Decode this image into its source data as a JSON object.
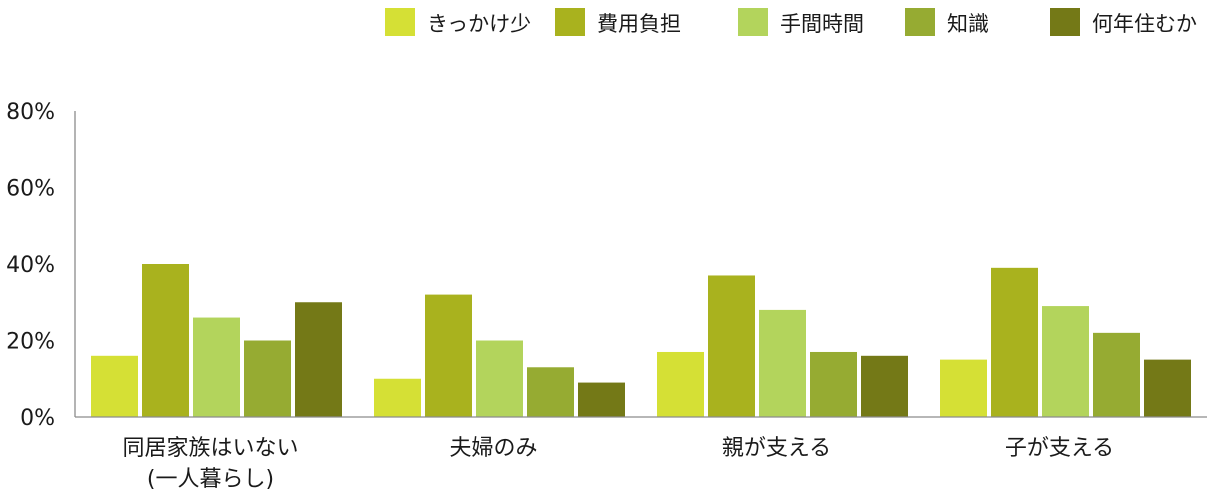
{
  "chart_data": {
    "type": "bar",
    "categories": [
      [
        "同居家族はいない",
        "(一人暮らし)"
      ],
      [
        "夫婦のみ"
      ],
      [
        "親が支える"
      ],
      [
        "子が支える"
      ]
    ],
    "series": [
      {
        "name": "きっかけ少",
        "color": "#d5e035",
        "values": [
          16,
          10,
          17,
          15
        ]
      },
      {
        "name": "費用負担",
        "color": "#a9b21e",
        "values": [
          40,
          32,
          37,
          39
        ]
      },
      {
        "name": "手間時間",
        "color": "#b3d45c",
        "values": [
          26,
          20,
          28,
          29
        ]
      },
      {
        "name": "知識",
        "color": "#96ab32",
        "values": [
          20,
          13,
          17,
          22
        ]
      },
      {
        "name": "何年住むか",
        "color": "#747917",
        "values": [
          30,
          9,
          16,
          15
        ]
      }
    ],
    "y_ticks": [
      "0%",
      "20%",
      "40%",
      "60%",
      "80%"
    ],
    "ylim": [
      0,
      80
    ],
    "legend_position": "top-right",
    "grid": false
  }
}
